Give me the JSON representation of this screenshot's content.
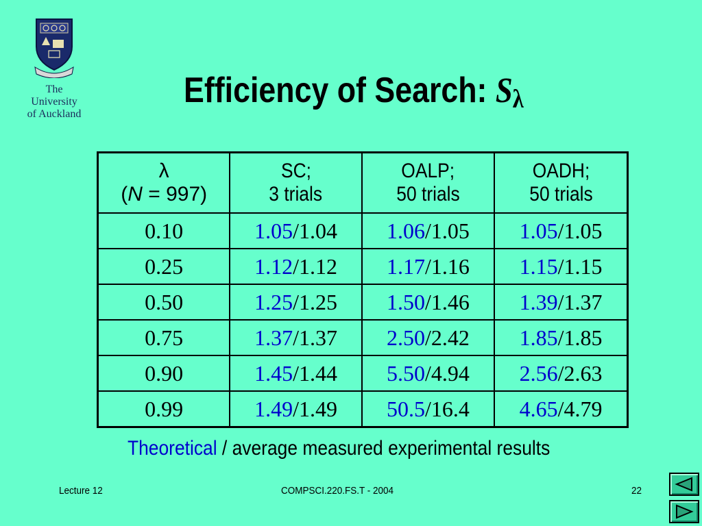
{
  "slide": {
    "title": "Efficiency of Search: ",
    "title_symbol": "S",
    "title_subscript": "λ"
  },
  "logo": {
    "line1": "The",
    "line2": "University",
    "line3": "of Auckland"
  },
  "table": {
    "headers": [
      {
        "line1": "λ",
        "line2_prefix": "(",
        "line2_var": "N",
        "line2_rest": " = 997)"
      },
      {
        "line1": "SC;",
        "line2": "3 trials"
      },
      {
        "line1": "OALP;",
        "line2": "50 trials"
      },
      {
        "line1": "OADH;",
        "line2": "50 trials"
      }
    ],
    "rows": [
      {
        "lambda": "0.10",
        "sc_theo": "1.05",
        "sc_meas": "/1.04",
        "oalp_theo": "1.06",
        "oalp_meas": "/1.05",
        "oadh_theo": "1.05",
        "oadh_meas": "/1.05"
      },
      {
        "lambda": "0.25",
        "sc_theo": "1.12",
        "sc_meas": "/1.12",
        "oalp_theo": "1.17",
        "oalp_meas": "/1.16",
        "oadh_theo": "1.15",
        "oadh_meas": "/1.15"
      },
      {
        "lambda": "0.50",
        "sc_theo": "1.25",
        "sc_meas": "/1.25",
        "oalp_theo": "1.50",
        "oalp_meas": "/1.46",
        "oadh_theo": "1.39",
        "oadh_meas": "/1.37"
      },
      {
        "lambda": "0.75",
        "sc_theo": "1.37",
        "sc_meas": "/1.37",
        "oalp_theo": "2.50",
        "oalp_meas": "/2.42",
        "oadh_theo": "1.85",
        "oadh_meas": "/1.85"
      },
      {
        "lambda": "0.90",
        "sc_theo": "1.45",
        "sc_meas": "/1.44",
        "oalp_theo": "5.50",
        "oalp_meas": "/4.94",
        "oadh_theo": "2.56",
        "oadh_meas": "/2.63"
      },
      {
        "lambda": "0.99",
        "sc_theo": "1.49",
        "sc_meas": "/1.49",
        "oalp_theo": "50.5",
        "oalp_meas": "/16.4",
        "oadh_theo": "4.65",
        "oadh_meas": "/4.79"
      }
    ]
  },
  "caption": {
    "highlight": "Theoretical",
    "rest": " / average measured experimental results"
  },
  "footer": {
    "left": "Lecture 12",
    "center": "COMPSCI.220.FS.T - 2004",
    "page_number": "22"
  },
  "nav": {
    "prev_icon": "triangle-left-icon",
    "next_icon": "triangle-right-icon"
  },
  "colors": {
    "background": "#66ffcc",
    "theoretical": "#0000cc",
    "nav_button": "#33cc99"
  }
}
